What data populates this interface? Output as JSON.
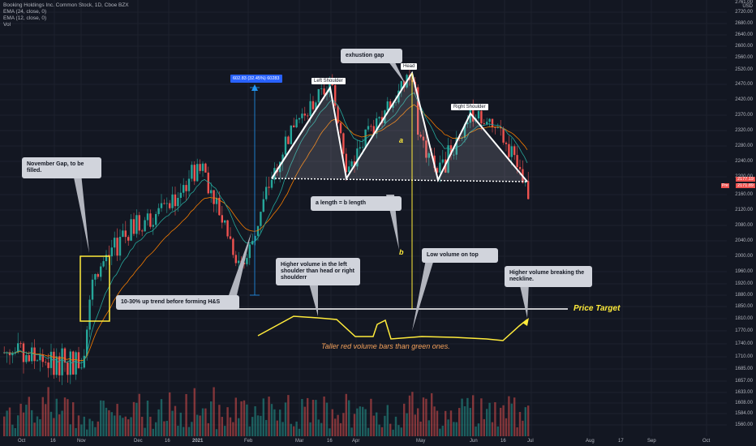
{
  "legend": {
    "title": "Booking Holdings Inc. Common Stock, 1D, Cboe BZX",
    "ema1": "EMA (24, close, 0)",
    "ema2": "EMA (12, close, 0)",
    "vol": "Vol"
  },
  "annotations": {
    "november_gap": "November Gap, to be filled.",
    "up_trend": "10-30% up trend before forming H&S",
    "higher_volume_left": "Higher volume in the left shoulder than head or right shoulderr",
    "exhaustion_gap": "exhustion gap",
    "a_equals_b": "a length = b length",
    "low_volume_top": "Low volume on top",
    "higher_volume_breaking": "Higher volume breaking the neckline.",
    "left_shoulder": "Left Shoulder",
    "head": "Head",
    "right_shoulder": "Right Shoulder",
    "measure": "602.83 (32.45%) 60283",
    "price_target": "Price Target",
    "taller_red": "Taller red volume bars than green ones.",
    "label_a": "a",
    "label_b": "b"
  },
  "price_axis": {
    "currency": "USD",
    "ticks": [
      "2720.00",
      "2680.00",
      "2640.00",
      "2600.00",
      "2560.00",
      "2520.00",
      "2470.00",
      "2420.00",
      "2370.00",
      "2320.00",
      "2280.00",
      "2240.00",
      "2200.00",
      "2160.00",
      "2120.00",
      "2080.00",
      "2040.00",
      "2000.00",
      "1960.00",
      "1920.00",
      "1880.00",
      "1850.00",
      "1810.00",
      "1770.00",
      "1740.00",
      "1710.00",
      "1685.00",
      "1657.00",
      "1633.00",
      "1608.00",
      "1584.00",
      "1560.00"
    ],
    "last_price": "2177.19",
    "second_price": "2171.89",
    "top_partial": "2761.00"
  },
  "time_axis": {
    "ticks": [
      "Oct",
      "16",
      "Nov",
      "Dec",
      "16",
      "2021",
      "Feb",
      "Mar",
      "16",
      "Apr",
      "May",
      "Jun",
      "16",
      "Jul",
      "Aug",
      "17",
      "Sep",
      "Oct"
    ]
  },
  "colors": {
    "background": "#131722",
    "up": "#26a69a",
    "down": "#ef5350",
    "ema24": "#f57c00",
    "ema12": "#26a69a",
    "annotation_yellow": "#ffeb3b",
    "measure_blue": "#2196f3"
  },
  "chart_data": {
    "type": "candlestick",
    "title": "Booking Holdings Inc. Common Stock, 1D, Cboe BZX",
    "ylim": [
      1545,
      2770
    ],
    "pattern": "head and shoulders",
    "neckline": 2200,
    "price_target": 1830,
    "last_close": 2177.19,
    "close_series": [
      {
        "x": "Oct",
        "y": 1720
      },
      {
        "x": "16",
        "y": 1700
      },
      {
        "x": "Nov",
        "y": 1700
      },
      {
        "x": "Nov gap",
        "y": 1960
      },
      {
        "x": "Dec",
        "y": 2080
      },
      {
        "x": "16",
        "y": 2120
      },
      {
        "x": "2021",
        "y": 2240
      },
      {
        "x": "Feb",
        "y": 1960
      },
      {
        "x": "Feb end",
        "y": 2180
      },
      {
        "x": "Mar",
        "y": 2340
      },
      {
        "x": "Left Shoulder",
        "y": 2470
      },
      {
        "x": "16",
        "y": 2220
      },
      {
        "x": "Apr",
        "y": 2330
      },
      {
        "x": "Head",
        "y": 2505
      },
      {
        "x": "May",
        "y": 2310
      },
      {
        "x": "May mid",
        "y": 2205
      },
      {
        "x": "Right Shoulder",
        "y": 2380
      },
      {
        "x": "16",
        "y": 2300
      },
      {
        "x": "Jul",
        "y": 2177.19
      }
    ]
  }
}
